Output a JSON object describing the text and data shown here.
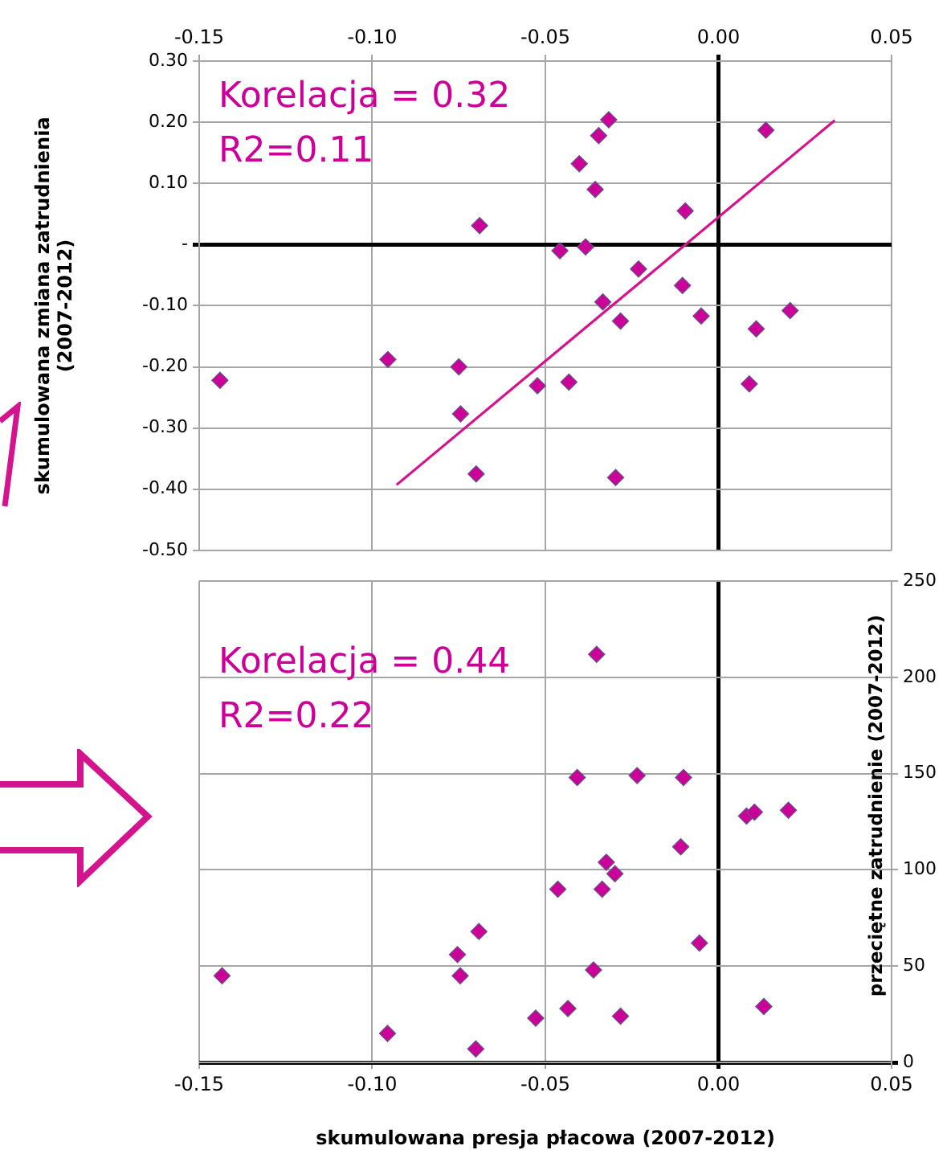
{
  "chart_data": [
    {
      "type": "scatter",
      "ylabel": "skumulowana zmiana zatrudnienia\n(2007-2012)",
      "annotations": [
        "Korelacja = 0.32",
        "R2=0.11"
      ],
      "grid": true,
      "legend": false,
      "xlim": [
        -0.15,
        0.05
      ],
      "xticks": [
        {
          "value": -0.15,
          "label": "-0.15"
        },
        {
          "value": -0.1,
          "label": "-0.10"
        },
        {
          "value": -0.05,
          "label": "-0.05"
        },
        {
          "value": 0,
          "label": "0.00"
        },
        0.05
      ],
      "ylim": [
        -0.5,
        0.3
      ],
      "yticks": [
        {
          "value": -0.5,
          "label": "-0.50"
        },
        {
          "value": -0.4,
          "label": "-0.40"
        },
        {
          "value": -0.3,
          "label": "-0.30"
        },
        {
          "value": -0.2,
          "label": "-0.20"
        },
        {
          "value": -0.1,
          "label": "-0.10"
        },
        {
          "value": 0,
          "label": "-"
        },
        {
          "value": 0.1,
          "label": "0.10"
        },
        {
          "value": 0.2,
          "label": "0.20"
        },
        {
          "value": 0.3,
          "label": "0.30"
        }
      ],
      "series": [
        {
          "color": "#cc0099",
          "marker": "diamond",
          "x": [
            -0.144,
            -0.0955,
            -0.075,
            -0.069,
            -0.0745,
            -0.07,
            -0.0523,
            -0.0458,
            -0.0432,
            -0.0402,
            -0.0384,
            -0.0356,
            -0.0346,
            -0.0317,
            -0.0334,
            -0.0297,
            -0.0283,
            -0.0231,
            -0.0104,
            -0.0096,
            -0.005,
            0.0089,
            0.0109,
            0.0137,
            0.0207
          ],
          "values": [
            -0.222,
            -0.188,
            -0.2,
            0.031,
            -0.277,
            -0.375,
            -0.231,
            -0.01,
            -0.225,
            0.132,
            -0.004,
            0.09,
            0.178,
            0.204,
            -0.094,
            -0.381,
            -0.125,
            -0.04,
            -0.067,
            0.055,
            -0.117,
            -0.228,
            -0.138,
            0.187,
            -0.108
          ]
        },
        {
          "type": "line",
          "color": "#d4148f",
          "x": [
            -0.093,
            0.0336
          ],
          "values": [
            -0.393,
            0.203
          ]
        }
      ]
    },
    {
      "type": "scatter",
      "xlabel": "skumulowana presja płacowa (2007-2012)",
      "ylabel": "przeciętne zatrudnienie (2007-2012)",
      "annotations": [
        "Korelacja = 0.44",
        "R2=0.22"
      ],
      "grid": true,
      "legend": false,
      "xlim": [
        -0.15,
        0.05
      ],
      "xticks": [
        {
          "value": -0.15,
          "label": "-0.15"
        },
        {
          "value": -0.1,
          "label": "-0.10"
        },
        {
          "value": -0.05,
          "label": "-0.05"
        },
        {
          "value": 0,
          "label": "0.00"
        },
        0.05
      ],
      "ylim": [
        0,
        250
      ],
      "yticks": [
        0,
        50,
        100,
        150,
        200,
        250
      ],
      "series": [
        {
          "color": "#cc0099",
          "marker": "diamond",
          "x": [
            -0.1434,
            -0.0956,
            -0.0754,
            -0.0746,
            -0.0692,
            -0.0701,
            -0.0528,
            -0.0464,
            -0.0435,
            -0.0408,
            -0.0361,
            -0.0352,
            -0.0336,
            -0.0324,
            -0.0299,
            -0.0283,
            -0.0235,
            -0.0109,
            -0.0101,
            -0.0055,
            0.0081,
            0.0104,
            0.0131,
            0.0202
          ],
          "values": [
            45,
            15,
            56,
            45,
            68,
            7,
            23,
            90,
            28,
            148,
            48,
            212,
            90,
            104,
            98,
            24,
            149,
            112,
            148,
            62,
            128,
            130,
            29,
            131
          ]
        }
      ]
    }
  ]
}
